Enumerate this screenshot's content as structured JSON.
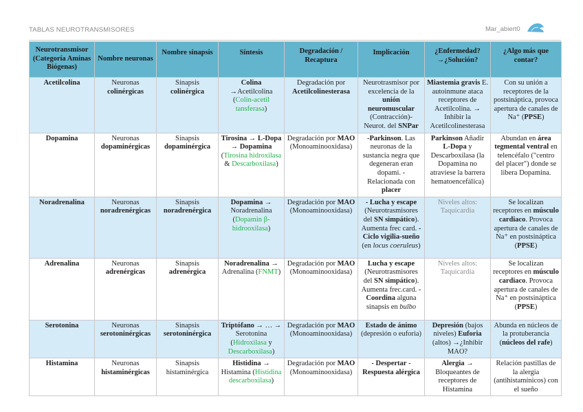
{
  "header": {
    "title": "TABLAS NEUROTRANSMISORES",
    "brand": "Mar_abiert0",
    "logo_icon": "blue-wave-logo"
  },
  "colors": {
    "header_bg": "#63b4cd",
    "row_blue": "#d6ebf8",
    "enzyme_green": "#22b04a"
  },
  "table": {
    "columns": [
      "Neurotransmisor (Categoría Aminas Biógenas)",
      "Nombre neuronas",
      "Nombre sinapsis",
      "Síntesis",
      "Degradación / Recaptura",
      "Implicación",
      "¿Enfermedad? →¿Solución?",
      "¿Algo más que contar?"
    ],
    "rows": [
      {
        "shade": "blue",
        "cells": [
          [
            {
              "t": "Acetilcolina",
              "s": "b"
            }
          ],
          [
            {
              "t": "Neuronas "
            },
            {
              "t": "colinérgicas",
              "s": "b"
            }
          ],
          [
            {
              "t": "Sinapsis "
            },
            {
              "t": "colinérgica",
              "s": "b"
            }
          ],
          [
            {
              "t": "Colina",
              "s": "b"
            },
            {
              "t": " →Acetilcolina ("
            },
            {
              "t": "Colin-acetil tansferasa",
              "s": "g"
            },
            {
              "t": ")"
            }
          ],
          [
            {
              "t": "Degradación por "
            },
            {
              "t": "Acetilcolinesterasa",
              "s": "b"
            }
          ],
          [
            {
              "t": "Neurotrasmisor por excelencia de la "
            },
            {
              "t": "unión neuromuscular",
              "s": "b"
            },
            {
              "t": " (Contracción)- Neurot. del "
            },
            {
              "t": "SNPar",
              "s": "b"
            }
          ],
          [
            {
              "t": "Miastemia gravis",
              "s": "b"
            },
            {
              "t": " E. autoinmune ataca receptores de Acetilcolina. → Inhibir la Acetilcolinesterasa"
            }
          ],
          [
            {
              "t": "Con su unión a receptores de la postsináptica, provoca apertura de canales de Na⁺ ("
            },
            {
              "t": "PPSE",
              "s": "b"
            },
            {
              "t": ")"
            }
          ]
        ]
      },
      {
        "shade": "white",
        "cells": [
          [
            {
              "t": "Dopamina",
              "s": "b"
            }
          ],
          [
            {
              "t": "Neuronas "
            },
            {
              "t": "dopaminérgicas",
              "s": "b"
            }
          ],
          [
            {
              "t": "Sinapsis "
            },
            {
              "t": "dopaminérgica",
              "s": "b"
            }
          ],
          [
            {
              "t": "Tirosina → L-Dopa → Dopamina",
              "s": "b"
            },
            {
              "t": " ("
            },
            {
              "t": "Tirosina hidroxilasa",
              "s": "g"
            },
            {
              "t": " & "
            },
            {
              "t": "Descarboxilasa",
              "s": "g"
            },
            {
              "t": ")"
            }
          ],
          [
            {
              "t": "Degradación por "
            },
            {
              "t": "MAO",
              "s": "b"
            },
            {
              "t": " (Monoaminooxidasa)"
            }
          ],
          [
            {
              "t": "-Parkinson",
              "s": "b"
            },
            {
              "t": ". Las neuronas de la sustancia negra que degeneran eran dopami. -Relacionada con "
            },
            {
              "t": "placer",
              "s": "b"
            }
          ],
          [
            {
              "t": "Parkinson",
              "s": "b"
            },
            {
              "t": " Añadir "
            },
            {
              "t": "L-Dopa",
              "s": "b"
            },
            {
              "t": " y Descarboxilasa (la Dopamina no atraviese la barrera hematoencefálica)"
            }
          ],
          [
            {
              "t": "Abundan en "
            },
            {
              "t": "área tegmental ventral",
              "s": "b"
            },
            {
              "t": " en telencéfalo (\"centro del placer\") donde se libera Dopamina."
            }
          ]
        ]
      },
      {
        "shade": "blue",
        "cells": [
          [
            {
              "t": "Noradrenalina",
              "s": "b"
            }
          ],
          [
            {
              "t": "Neuronas "
            },
            {
              "t": "noradrenérgicas",
              "s": "b"
            }
          ],
          [
            {
              "t": "Sinapsis "
            },
            {
              "t": "noradrenérgica",
              "s": "b"
            }
          ],
          [
            {
              "t": "Dopamina",
              "s": "b"
            },
            {
              "t": " → Noradrenalina ("
            },
            {
              "t": "Dopamin β-hidrooxilasa",
              "s": "g"
            },
            {
              "t": ")"
            }
          ],
          [
            {
              "t": "Degradación por "
            },
            {
              "t": "MAO",
              "s": "b"
            },
            {
              "t": " (Monoaminooxidasa)"
            }
          ],
          [
            {
              "t": "- Lucha y escape",
              "s": "b"
            },
            {
              "t": " (Neurotrasmisores del "
            },
            {
              "t": "SN simpático",
              "s": "b"
            },
            {
              "t": "). Aumenta frec card. "
            },
            {
              "t": "-Ciclo vigilia-sueño",
              "s": "b"
            },
            {
              "t": " (en "
            },
            {
              "t": "locus coeruleus",
              "s": "i"
            },
            {
              "t": ")"
            }
          ],
          [
            {
              "t": "Niveles altos: Taquicardia",
              "s": "gr"
            }
          ],
          [
            {
              "t": "Se localizan receptores en "
            },
            {
              "t": "músculo cardiaco",
              "s": "b"
            },
            {
              "t": ". Provoca apertura de canales de Na⁺ en postsináptica ("
            },
            {
              "t": "PPSE",
              "s": "b"
            },
            {
              "t": ")"
            }
          ]
        ]
      },
      {
        "shade": "white",
        "cells": [
          [
            {
              "t": "Adrenalina",
              "s": "b"
            }
          ],
          [
            {
              "t": "Neuronas "
            },
            {
              "t": "adrenérgicas",
              "s": "b"
            }
          ],
          [
            {
              "t": "Sinapsis "
            },
            {
              "t": "adrenérgica",
              "s": "b"
            }
          ],
          [
            {
              "t": "Noradrenalina",
              "s": "b"
            },
            {
              "t": " → Adrenalina ("
            },
            {
              "t": "FNMT",
              "s": "g"
            },
            {
              "t": ")"
            }
          ],
          [
            {
              "t": "Degradación por "
            },
            {
              "t": "MAO",
              "s": "b"
            },
            {
              "t": " (Monoaminooxidasa)"
            }
          ],
          [
            {
              "t": "Lucha y escape",
              "s": "b"
            },
            {
              "t": " (Neurotrasmisores del "
            },
            {
              "t": "SN simpático",
              "s": "b"
            },
            {
              "t": "). Aumenta frec.card. -"
            },
            {
              "t": "Coordina",
              "s": "b"
            },
            {
              "t": " alguna sinapsis en "
            },
            {
              "t": "bulbo",
              "s": "i"
            }
          ],
          [
            {
              "t": "Niveles altos: Taquicardia",
              "s": "gr"
            }
          ],
          [
            {
              "t": "Se localizan receptores en "
            },
            {
              "t": "músculo cardiaco",
              "s": "b"
            },
            {
              "t": ". Provoca apertura de canales de Na⁺ en postsináptica ("
            },
            {
              "t": "PPSE",
              "s": "b"
            },
            {
              "t": ")"
            }
          ]
        ]
      },
      {
        "shade": "blue",
        "cells": [
          [
            {
              "t": "Serotonina",
              "s": "b"
            }
          ],
          [
            {
              "t": "Neuronas "
            },
            {
              "t": "serotoninérgicas",
              "s": "b"
            }
          ],
          [
            {
              "t": "Sinapsis "
            },
            {
              "t": "serotoninérgica",
              "s": "b"
            }
          ],
          [
            {
              "t": "Triptófano",
              "s": "b"
            },
            {
              "t": " → … → Serotonina ("
            },
            {
              "t": "Hidroxilasa",
              "s": "g"
            },
            {
              "t": " y "
            },
            {
              "t": "Descarboxilasa",
              "s": "g"
            },
            {
              "t": ")"
            }
          ],
          [
            {
              "t": "Degradación por "
            },
            {
              "t": "MAO",
              "s": "b"
            },
            {
              "t": " (Monoaminooxidasa)"
            }
          ],
          [
            {
              "t": "Estado de ánimo",
              "s": "b"
            },
            {
              "t": " (depresión o euforia)"
            }
          ],
          [
            {
              "t": "Depresión",
              "s": "b"
            },
            {
              "t": " (bajos niveles) "
            },
            {
              "t": "Euforia",
              "s": "b"
            },
            {
              "t": " (altos) →¿Inhibir MAO?"
            }
          ],
          [
            {
              "t": "Abunda en núcleos de la protuberancia ("
            },
            {
              "t": "núcleos del rafe",
              "s": "b"
            },
            {
              "t": ")"
            }
          ]
        ]
      },
      {
        "shade": "white",
        "cells": [
          [
            {
              "t": "Histamina",
              "s": "b"
            }
          ],
          [
            {
              "t": "Neuronas "
            },
            {
              "t": "histaminérgicas",
              "s": "b"
            }
          ],
          [
            {
              "t": "Sinapsis histaminérgica"
            }
          ],
          [
            {
              "t": "Histidina",
              "s": "b"
            },
            {
              "t": " → Histamina ("
            },
            {
              "t": "Histidina descarboxilasa",
              "s": "g"
            },
            {
              "t": ")"
            }
          ],
          [
            {
              "t": "Degradación por "
            },
            {
              "t": "MAO",
              "s": "b"
            },
            {
              "t": " (Monoaminooxidasa)"
            }
          ],
          [
            {
              "t": "- Despertar",
              "s": "b"
            },
            {
              "t": " "
            },
            {
              "t": "- Respuesta alérgica",
              "s": "b"
            }
          ],
          [
            {
              "t": "Alergia",
              "s": "b"
            },
            {
              "t": " → Bloqueantes de receptores de Histamina"
            }
          ],
          [
            {
              "t": "Relación pastillas de la alergia (antihistamínicos) con el sueño"
            }
          ]
        ]
      }
    ]
  }
}
